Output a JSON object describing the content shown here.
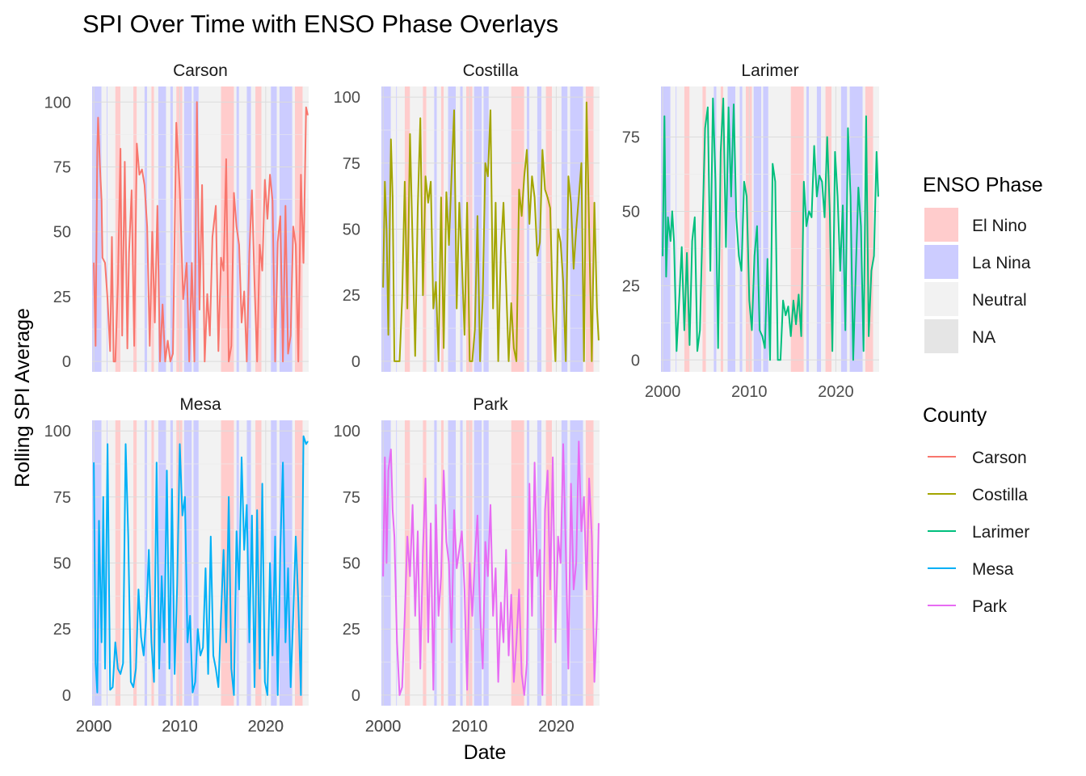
{
  "chart_data": {
    "type": "line",
    "title": "SPI Over Time with ENSO Phase Overlays",
    "xlabel": "Date",
    "ylabel": "Rolling SPI Average",
    "x_ticks": [
      "2000",
      "2010",
      "2020"
    ],
    "xlim": [
      1999.8,
      2025.0
    ],
    "grid": true,
    "legend_position": "right",
    "enso_legend": {
      "title": "ENSO Phase",
      "items": [
        {
          "label": "El Nino",
          "color": "#ffcccc"
        },
        {
          "label": "La Nina",
          "color": "#ccccff"
        },
        {
          "label": "Neutral",
          "color": "#f2f2f2"
        },
        {
          "label": "NA",
          "color": "#e5e5e5"
        }
      ]
    },
    "county_legend": {
      "title": "County",
      "items": [
        {
          "label": "Carson",
          "color": "#F8766D"
        },
        {
          "label": "Costilla",
          "color": "#A3A500"
        },
        {
          "label": "Larimer",
          "color": "#00BF7D"
        },
        {
          "label": "Mesa",
          "color": "#00B0F6"
        },
        {
          "label": "Park",
          "color": "#E76BF3"
        }
      ]
    },
    "enso_periods": [
      {
        "phase": "La Nina",
        "start": 1999.8,
        "end": 2000.9
      },
      {
        "phase": "Neutral",
        "start": 2000.9,
        "end": 2001.5
      },
      {
        "phase": "La Nina",
        "start": 2001.5,
        "end": 2001.6
      },
      {
        "phase": "Neutral",
        "start": 2001.6,
        "end": 2002.5
      },
      {
        "phase": "El Nino",
        "start": 2002.5,
        "end": 2003.1
      },
      {
        "phase": "Neutral",
        "start": 2003.1,
        "end": 2004.6
      },
      {
        "phase": "El Nino",
        "start": 2004.6,
        "end": 2005.0
      },
      {
        "phase": "Neutral",
        "start": 2005.0,
        "end": 2005.9
      },
      {
        "phase": "La Nina",
        "start": 2005.9,
        "end": 2006.2
      },
      {
        "phase": "Neutral",
        "start": 2006.2,
        "end": 2006.7
      },
      {
        "phase": "El Nino",
        "start": 2006.7,
        "end": 2007.0
      },
      {
        "phase": "Neutral",
        "start": 2007.0,
        "end": 2007.5
      },
      {
        "phase": "La Nina",
        "start": 2007.5,
        "end": 2008.4
      },
      {
        "phase": "Neutral",
        "start": 2008.4,
        "end": 2008.9
      },
      {
        "phase": "La Nina",
        "start": 2008.9,
        "end": 2009.2
      },
      {
        "phase": "Neutral",
        "start": 2009.2,
        "end": 2009.6
      },
      {
        "phase": "El Nino",
        "start": 2009.6,
        "end": 2010.3
      },
      {
        "phase": "Neutral",
        "start": 2010.3,
        "end": 2010.5
      },
      {
        "phase": "La Nina",
        "start": 2010.5,
        "end": 2011.4
      },
      {
        "phase": "Neutral",
        "start": 2011.4,
        "end": 2011.6
      },
      {
        "phase": "La Nina",
        "start": 2011.6,
        "end": 2012.2
      },
      {
        "phase": "Neutral",
        "start": 2012.2,
        "end": 2014.8
      },
      {
        "phase": "El Nino",
        "start": 2014.8,
        "end": 2016.3
      },
      {
        "phase": "Neutral",
        "start": 2016.3,
        "end": 2016.6
      },
      {
        "phase": "La Nina",
        "start": 2016.6,
        "end": 2016.9
      },
      {
        "phase": "Neutral",
        "start": 2016.9,
        "end": 2017.8
      },
      {
        "phase": "La Nina",
        "start": 2017.8,
        "end": 2018.3
      },
      {
        "phase": "Neutral",
        "start": 2018.3,
        "end": 2018.8
      },
      {
        "phase": "El Nino",
        "start": 2018.8,
        "end": 2019.5
      },
      {
        "phase": "Neutral",
        "start": 2019.5,
        "end": 2020.6
      },
      {
        "phase": "La Nina",
        "start": 2020.6,
        "end": 2021.3
      },
      {
        "phase": "Neutral",
        "start": 2021.3,
        "end": 2021.6
      },
      {
        "phase": "La Nina",
        "start": 2021.6,
        "end": 2023.1
      },
      {
        "phase": "Neutral",
        "start": 2023.1,
        "end": 2023.4
      },
      {
        "phase": "El Nino",
        "start": 2023.4,
        "end": 2024.3
      },
      {
        "phase": "Neutral",
        "start": 2024.3,
        "end": 2025.0
      }
    ],
    "panels": [
      {
        "name": "Carson",
        "color": "#F8766D",
        "ylim": [
          -4,
          106
        ],
        "yticks": [
          "0",
          "25",
          "50",
          "75",
          "100"
        ],
        "x": [
          2000.0,
          2000.2,
          2000.4,
          2000.5,
          2000.7,
          2000.9,
          2001.0,
          2001.3,
          2001.6,
          2001.9,
          2002.1,
          2002.3,
          2002.5,
          2002.8,
          2003.1,
          2003.3,
          2003.6,
          2003.9,
          2004.1,
          2004.4,
          2004.7,
          2005.0,
          2005.3,
          2005.6,
          2005.9,
          2006.2,
          2006.5,
          2006.8,
          2007.1,
          2007.4,
          2007.7,
          2008.0,
          2008.3,
          2008.6,
          2008.9,
          2009.2,
          2009.6,
          2010.0,
          2010.4,
          2010.8,
          2011.1,
          2011.4,
          2011.7,
          2012.0,
          2012.3,
          2012.6,
          2012.9,
          2013.2,
          2013.5,
          2013.8,
          2014.2,
          2014.5,
          2014.8,
          2015.1,
          2015.4,
          2015.7,
          2016.0,
          2016.3,
          2016.6,
          2016.9,
          2017.2,
          2017.5,
          2017.8,
          2018.1,
          2018.4,
          2018.7,
          2019.0,
          2019.3,
          2019.6,
          2019.9,
          2020.2,
          2020.5,
          2020.8,
          2021.1,
          2021.4,
          2021.7,
          2022.0,
          2022.3,
          2022.6,
          2022.9,
          2023.2,
          2023.5,
          2023.8,
          2024.1,
          2024.4,
          2024.7,
          2024.9
        ],
        "y": [
          38,
          6,
          82,
          94,
          76,
          62,
          40,
          38,
          24,
          4,
          48,
          0,
          0,
          30,
          82,
          10,
          77,
          5,
          42,
          66,
          6,
          84,
          72,
          74,
          68,
          52,
          6,
          50,
          15,
          60,
          0,
          22,
          0,
          8,
          0,
          3,
          92,
          66,
          24,
          38,
          0,
          38,
          0,
          100,
          20,
          68,
          0,
          26,
          10,
          48,
          60,
          4,
          40,
          35,
          78,
          0,
          6,
          65,
          52,
          45,
          15,
          27,
          0,
          42,
          66,
          30,
          0,
          45,
          35,
          70,
          55,
          72,
          62,
          0,
          46,
          56,
          0,
          60,
          3,
          10,
          52,
          45,
          0,
          72,
          38,
          98,
          95
        ]
      },
      {
        "name": "Costilla",
        "color": "#A3A500",
        "ylim": [
          -4,
          104
        ],
        "yticks": [
          "0",
          "25",
          "50",
          "75",
          "100"
        ],
        "x": [
          2000.0,
          2000.2,
          2000.4,
          2000.6,
          2000.9,
          2001.1,
          2001.3,
          2001.6,
          2001.9,
          2002.2,
          2002.5,
          2002.8,
          2003.1,
          2003.4,
          2003.7,
          2004.0,
          2004.3,
          2004.6,
          2004.9,
          2005.2,
          2005.5,
          2005.8,
          2006.1,
          2006.4,
          2006.7,
          2007.0,
          2007.3,
          2007.6,
          2007.9,
          2008.2,
          2008.5,
          2008.8,
          2009.1,
          2009.4,
          2009.7,
          2010.0,
          2010.3,
          2010.6,
          2010.9,
          2011.2,
          2011.5,
          2011.8,
          2012.1,
          2012.4,
          2012.7,
          2013.0,
          2013.3,
          2013.6,
          2013.9,
          2014.2,
          2014.5,
          2014.8,
          2015.1,
          2015.4,
          2015.7,
          2016.0,
          2016.3,
          2016.6,
          2016.9,
          2017.2,
          2017.5,
          2017.8,
          2018.1,
          2018.4,
          2018.7,
          2019.0,
          2019.3,
          2019.6,
          2019.9,
          2020.2,
          2020.5,
          2020.8,
          2021.1,
          2021.4,
          2021.7,
          2022.0,
          2022.3,
          2022.6,
          2022.9,
          2023.2,
          2023.5,
          2023.8,
          2024.1,
          2024.4,
          2024.7,
          2024.9
        ],
        "y": [
          28,
          68,
          50,
          10,
          84,
          62,
          0,
          0,
          0,
          24,
          68,
          20,
          86,
          45,
          2,
          58,
          92,
          25,
          70,
          60,
          68,
          20,
          30,
          0,
          62,
          5,
          64,
          44,
          70,
          95,
          20,
          60,
          38,
          10,
          60,
          0,
          0,
          12,
          55,
          0,
          24,
          75,
          70,
          95,
          20,
          60,
          0,
          42,
          60,
          30,
          0,
          22,
          5,
          0,
          65,
          55,
          70,
          80,
          52,
          70,
          62,
          40,
          45,
          80,
          65,
          62,
          58,
          20,
          0,
          50,
          45,
          30,
          0,
          70,
          60,
          35,
          50,
          62,
          75,
          0,
          98,
          50,
          0,
          60,
          20,
          8
        ]
      },
      {
        "name": "Larimer",
        "color": "#00BF7D",
        "ylim": [
          -4,
          92
        ],
        "yticks": [
          "0",
          "25",
          "50",
          "75"
        ],
        "x": [
          2000.0,
          2000.2,
          2000.4,
          2000.6,
          2000.9,
          2001.1,
          2001.3,
          2001.6,
          2001.9,
          2002.2,
          2002.5,
          2002.8,
          2003.1,
          2003.4,
          2003.7,
          2004.0,
          2004.3,
          2004.6,
          2004.9,
          2005.2,
          2005.5,
          2005.8,
          2006.1,
          2006.4,
          2006.7,
          2007.0,
          2007.3,
          2007.6,
          2007.9,
          2008.2,
          2008.5,
          2008.8,
          2009.1,
          2009.4,
          2009.7,
          2010.0,
          2010.3,
          2010.6,
          2010.9,
          2011.2,
          2011.5,
          2011.8,
          2012.1,
          2012.4,
          2012.7,
          2013.0,
          2013.3,
          2013.6,
          2013.9,
          2014.2,
          2014.5,
          2014.8,
          2015.1,
          2015.4,
          2015.7,
          2016.0,
          2016.3,
          2016.6,
          2016.9,
          2017.2,
          2017.5,
          2017.8,
          2018.1,
          2018.4,
          2018.7,
          2019.0,
          2019.3,
          2019.6,
          2019.9,
          2020.2,
          2020.5,
          2020.8,
          2021.1,
          2021.4,
          2021.7,
          2022.0,
          2022.3,
          2022.6,
          2022.9,
          2023.2,
          2023.5,
          2023.8,
          2024.1,
          2024.4,
          2024.7,
          2024.9
        ],
        "y": [
          35,
          82,
          28,
          48,
          40,
          50,
          40,
          3,
          20,
          38,
          10,
          36,
          5,
          40,
          48,
          3,
          10,
          45,
          78,
          85,
          30,
          88,
          60,
          4,
          70,
          88,
          38,
          85,
          55,
          86,
          48,
          35,
          30,
          60,
          55,
          20,
          10,
          35,
          45,
          10,
          8,
          4,
          34,
          0,
          66,
          60,
          0,
          0,
          20,
          15,
          18,
          8,
          20,
          12,
          22,
          8,
          60,
          45,
          50,
          48,
          72,
          55,
          62,
          60,
          48,
          75,
          50,
          3,
          70,
          55,
          30,
          52,
          10,
          78,
          55,
          0,
          30,
          58,
          45,
          3,
          82,
          8,
          30,
          35,
          70,
          55
        ]
      },
      {
        "name": "Mesa",
        "color": "#00B0F6",
        "ylim": [
          -4,
          104
        ],
        "yticks": [
          "0",
          "25",
          "50",
          "75",
          "100"
        ],
        "x": [
          2000.0,
          2000.2,
          2000.4,
          2000.6,
          2000.9,
          2001.1,
          2001.3,
          2001.6,
          2001.9,
          2002.2,
          2002.5,
          2002.8,
          2003.1,
          2003.4,
          2003.7,
          2004.0,
          2004.3,
          2004.6,
          2004.9,
          2005.2,
          2005.5,
          2005.8,
          2006.1,
          2006.4,
          2006.7,
          2007.0,
          2007.3,
          2007.6,
          2007.9,
          2008.2,
          2008.5,
          2008.8,
          2009.1,
          2009.4,
          2009.7,
          2010.0,
          2010.3,
          2010.6,
          2010.9,
          2011.2,
          2011.5,
          2011.8,
          2012.1,
          2012.4,
          2012.7,
          2013.0,
          2013.3,
          2013.6,
          2013.9,
          2014.2,
          2014.5,
          2014.8,
          2015.1,
          2015.4,
          2015.7,
          2016.0,
          2016.3,
          2016.6,
          2016.9,
          2017.2,
          2017.5,
          2017.8,
          2018.1,
          2018.4,
          2018.7,
          2019.0,
          2019.3,
          2019.6,
          2019.9,
          2020.2,
          2020.5,
          2020.8,
          2021.1,
          2021.4,
          2021.7,
          2022.0,
          2022.3,
          2022.6,
          2022.9,
          2023.2,
          2023.5,
          2023.8,
          2024.1,
          2024.4,
          2024.7,
          2024.9
        ],
        "y": [
          88,
          12,
          1,
          66,
          20,
          75,
          10,
          95,
          2,
          3,
          20,
          10,
          8,
          12,
          95,
          60,
          5,
          3,
          10,
          40,
          22,
          15,
          30,
          55,
          20,
          5,
          88,
          10,
          45,
          20,
          85,
          10,
          78,
          8,
          42,
          95,
          68,
          75,
          20,
          30,
          1,
          5,
          25,
          15,
          18,
          48,
          8,
          60,
          15,
          10,
          3,
          30,
          55,
          20,
          75,
          10,
          0,
          62,
          40,
          90,
          55,
          72,
          20,
          68,
          3,
          70,
          10,
          80,
          5,
          0,
          50,
          15,
          60,
          0,
          55,
          88,
          20,
          48,
          3,
          30,
          60,
          35,
          0,
          98,
          95,
          96
        ]
      },
      {
        "name": "Park",
        "color": "#E76BF3",
        "ylim": [
          -4,
          104
        ],
        "yticks": [
          "0",
          "25",
          "50",
          "75",
          "100"
        ],
        "x": [
          2000.0,
          2000.2,
          2000.4,
          2000.6,
          2000.9,
          2001.1,
          2001.3,
          2001.6,
          2001.9,
          2002.2,
          2002.5,
          2002.8,
          2003.1,
          2003.4,
          2003.7,
          2004.0,
          2004.3,
          2004.6,
          2004.9,
          2005.2,
          2005.5,
          2005.8,
          2006.1,
          2006.4,
          2006.7,
          2007.0,
          2007.3,
          2007.6,
          2007.9,
          2008.2,
          2008.5,
          2008.8,
          2009.1,
          2009.4,
          2009.7,
          2010.0,
          2010.3,
          2010.6,
          2010.9,
          2011.2,
          2011.5,
          2011.8,
          2012.1,
          2012.4,
          2012.7,
          2013.0,
          2013.3,
          2013.6,
          2013.9,
          2014.2,
          2014.5,
          2014.8,
          2015.1,
          2015.4,
          2015.7,
          2016.0,
          2016.3,
          2016.6,
          2016.9,
          2017.2,
          2017.5,
          2017.8,
          2018.1,
          2018.4,
          2018.7,
          2019.0,
          2019.3,
          2019.6,
          2019.9,
          2020.2,
          2020.5,
          2020.8,
          2021.1,
          2021.4,
          2021.7,
          2022.0,
          2022.3,
          2022.6,
          2022.9,
          2023.2,
          2023.5,
          2023.8,
          2024.1,
          2024.4,
          2024.7,
          2024.9
        ],
        "y": [
          45,
          90,
          50,
          85,
          93,
          70,
          60,
          20,
          0,
          3,
          30,
          60,
          45,
          72,
          30,
          62,
          10,
          55,
          82,
          20,
          65,
          2,
          72,
          30,
          45,
          85,
          58,
          50,
          20,
          70,
          48,
          55,
          62,
          40,
          2,
          50,
          30,
          52,
          68,
          32,
          10,
          58,
          45,
          72,
          30,
          48,
          5,
          35,
          20,
          55,
          15,
          38,
          5,
          20,
          40,
          8,
          0,
          12,
          80,
          30,
          88,
          45,
          55,
          0,
          70,
          85,
          40,
          90,
          20,
          60,
          50,
          95,
          55,
          10,
          80,
          40,
          50,
          96,
          62,
          75,
          40,
          82,
          60,
          5,
          30,
          65
        ]
      }
    ]
  }
}
